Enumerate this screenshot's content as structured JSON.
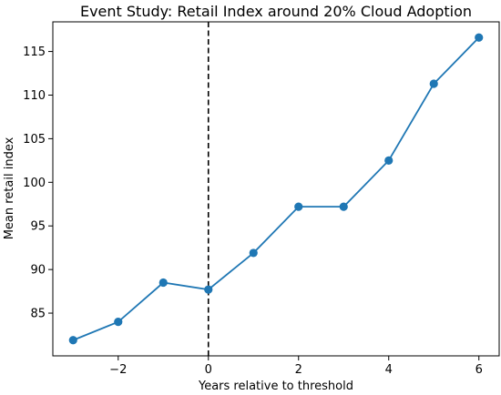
{
  "chart_data": {
    "type": "line",
    "title": "Event Study: Retail Index around 20% Cloud Adoption",
    "xlabel": "Years relative to threshold",
    "ylabel": "Mean retail index",
    "xlim": [
      -3.45,
      6.45
    ],
    "ylim": [
      80.1,
      118.4
    ],
    "xticks": [
      -2,
      0,
      2,
      4,
      6
    ],
    "xtick_labels": [
      "−2",
      "0",
      "2",
      "4",
      "6"
    ],
    "yticks": [
      85,
      90,
      95,
      100,
      105,
      110,
      115
    ],
    "grid": false,
    "reference_line": {
      "x": 0,
      "style": "dashed",
      "color": "#000000"
    },
    "series": [
      {
        "color": "#1f77b4",
        "x": [
          -3,
          -2,
          -1,
          0,
          1,
          2,
          3,
          4,
          5,
          6
        ],
        "y": [
          81.9,
          84.0,
          88.5,
          87.7,
          91.9,
          97.2,
          97.2,
          102.5,
          111.3,
          116.6
        ]
      }
    ]
  }
}
